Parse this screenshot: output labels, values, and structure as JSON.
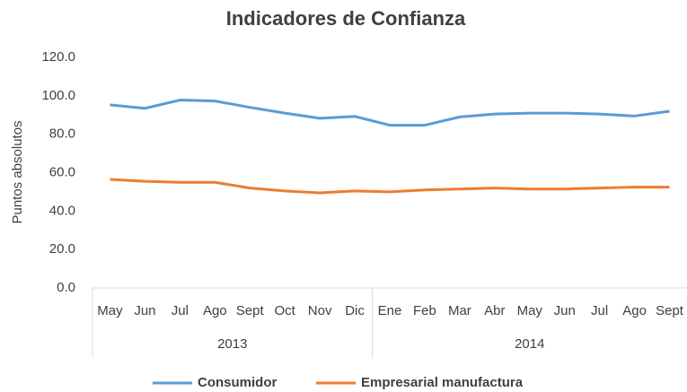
{
  "chart_data": {
    "type": "line",
    "title": "Indicadores de Confianza",
    "y_label": "Puntos absolutos",
    "groups": [
      {
        "label": "2013",
        "categories": [
          "May",
          "Jun",
          "Jul",
          "Ago",
          "Sept",
          "Oct",
          "Nov",
          "Dic"
        ]
      },
      {
        "label": "2014",
        "categories": [
          "Ene",
          "Feb",
          "Mar",
          "Abr",
          "May",
          "Jun",
          "Jul",
          "Ago",
          "Sept"
        ]
      }
    ],
    "series": [
      {
        "name": "Consumidor",
        "color": "#5b9bd5",
        "values": [
          95.3,
          93.5,
          97.8,
          97.3,
          94,
          91,
          88.3,
          89.3,
          84.7,
          84.7,
          89,
          90.5,
          91,
          91,
          90.5,
          89.5,
          92
        ]
      },
      {
        "name": "Empresarial manufactura",
        "color": "#ed7d31",
        "values": [
          56.5,
          55.5,
          55,
          55,
          52,
          50.5,
          49.5,
          50.5,
          50,
          51,
          51.5,
          52,
          51.5,
          51.5,
          52,
          52.5,
          52.5
        ]
      }
    ],
    "ylim": [
      0,
      120
    ],
    "yticks": [
      {
        "value": 0,
        "label": "0.0"
      },
      {
        "value": 20,
        "label": "20.0"
      },
      {
        "value": 40,
        "label": "40.0"
      },
      {
        "value": 60,
        "label": "60.0"
      },
      {
        "value": 80,
        "label": "80.0"
      },
      {
        "value": 100,
        "label": "100.0"
      },
      {
        "value": 120,
        "label": "120.0"
      }
    ],
    "grid": false,
    "legend": "bottom"
  }
}
